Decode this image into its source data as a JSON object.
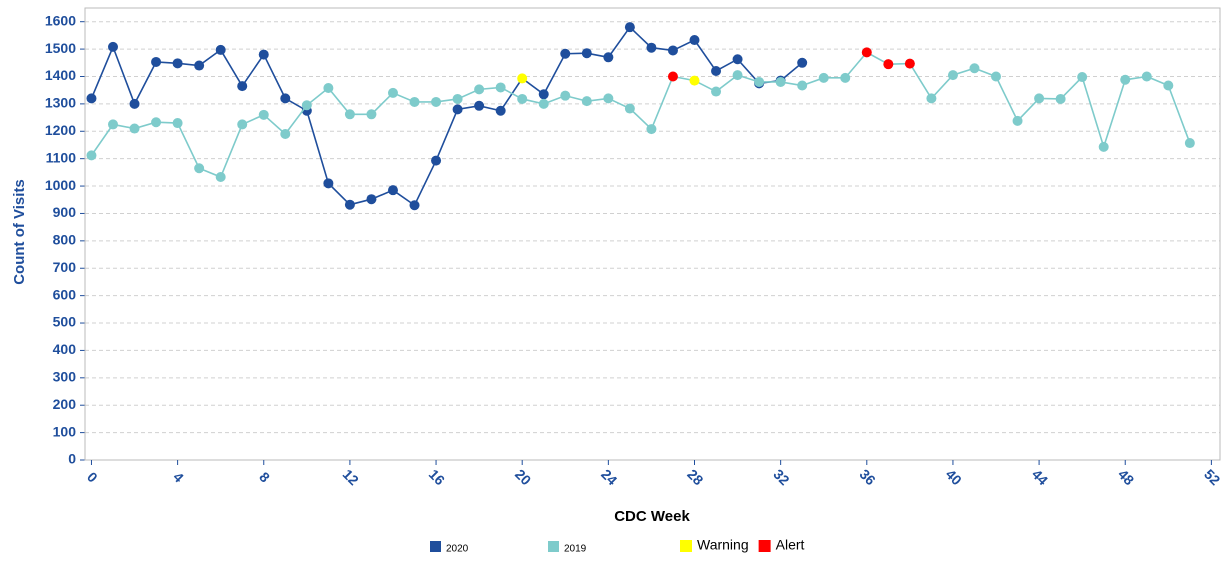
{
  "chart_data": {
    "type": "line",
    "x_label": "CDC Week",
    "y_label": "Count of Visits",
    "x": [
      0,
      1,
      2,
      3,
      4,
      5,
      6,
      7,
      8,
      9,
      10,
      11,
      12,
      13,
      14,
      15,
      16,
      17,
      18,
      19,
      20,
      21,
      22,
      23,
      24,
      25,
      26,
      27,
      28,
      29,
      30,
      31,
      32,
      33,
      34,
      35,
      36,
      37,
      38,
      39,
      40,
      41,
      42,
      43,
      44,
      45,
      46,
      47,
      48,
      49,
      50,
      51
    ],
    "series": [
      {
        "name": "2020",
        "color": "#1f4e9c",
        "values": [
          1320,
          1508,
          1300,
          1453,
          1448,
          1440,
          1497,
          1365,
          1480,
          1320,
          1275,
          1010,
          932,
          952,
          985,
          930,
          1093,
          1280,
          1293,
          1275,
          1393,
          1335,
          1483,
          1485,
          1470,
          1580,
          1505,
          1495,
          1533,
          1420,
          1463,
          1375,
          1385,
          1450,
          null,
          null,
          null,
          null,
          null,
          null,
          null,
          null,
          null,
          null,
          null,
          null,
          null,
          null,
          null,
          null,
          null,
          null
        ],
        "point_colors": [
          null,
          null,
          null,
          null,
          null,
          null,
          null,
          null,
          null,
          null,
          null,
          null,
          null,
          null,
          null,
          null,
          null,
          null,
          null,
          null,
          "#ffff00",
          null,
          null,
          null,
          null,
          null,
          null,
          null,
          null,
          null,
          null,
          null,
          null,
          null,
          null,
          null,
          null,
          null,
          null,
          null,
          null,
          null,
          null,
          null,
          null,
          null,
          null,
          null,
          null,
          null,
          null,
          null
        ]
      },
      {
        "name": "2019",
        "color": "#7ecbcb",
        "values": [
          1112,
          1225,
          1210,
          1233,
          1230,
          1065,
          1033,
          1225,
          1260,
          1190,
          1295,
          1358,
          1262,
          1262,
          1340,
          1307,
          1307,
          1318,
          1353,
          1360,
          1318,
          1300,
          1330,
          1310,
          1320,
          1283,
          1208,
          1400,
          1385,
          1345,
          1405,
          1380,
          1380,
          1367,
          1395,
          1395,
          1488,
          1445,
          1447,
          1320,
          1405,
          1430,
          1400,
          1238,
          1320,
          1318,
          1398,
          1143,
          1388,
          1400,
          1367,
          1157
        ],
        "point_colors": [
          null,
          null,
          null,
          null,
          null,
          null,
          null,
          null,
          null,
          null,
          null,
          null,
          null,
          null,
          null,
          null,
          null,
          null,
          null,
          null,
          null,
          null,
          null,
          null,
          null,
          null,
          null,
          "#ff0000",
          "#ffff00",
          null,
          null,
          null,
          null,
          null,
          null,
          null,
          "#ff0000",
          "#ff0000",
          "#ff0000",
          null,
          null,
          null,
          null,
          null,
          null,
          null,
          null,
          null,
          null,
          null,
          null,
          null
        ]
      }
    ],
    "flag_legend": [
      {
        "name": "Warning",
        "color": "#ffff00"
      },
      {
        "name": "Alert",
        "color": "#ff0000"
      }
    ],
    "xlim": [
      -0.3,
      52.4
    ],
    "xticks": [
      0,
      4,
      8,
      12,
      16,
      20,
      24,
      28,
      32,
      36,
      40,
      44,
      48,
      52
    ],
    "ylim": [
      0,
      1650
    ],
    "yticks": [
      0,
      100,
      200,
      300,
      400,
      500,
      600,
      700,
      800,
      900,
      1000,
      1100,
      1200,
      1300,
      1400,
      1500,
      1600
    ],
    "grid": true
  }
}
